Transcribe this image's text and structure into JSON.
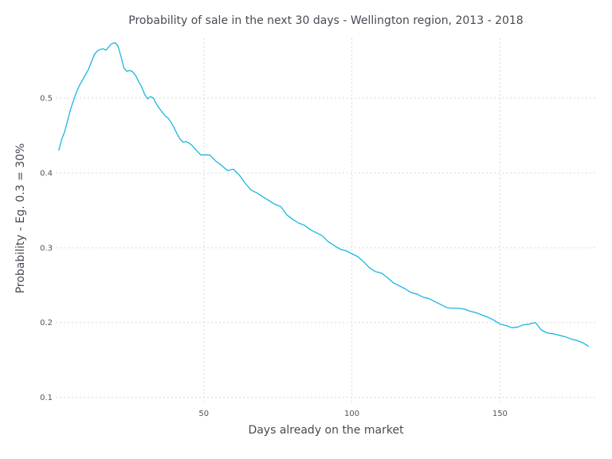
{
  "chart_data": {
    "type": "line",
    "title": "Probability of sale in the next 30 days - Wellington region, 2013 - 2018",
    "xlabel": "Days already on the market",
    "ylabel": "Probability - Eg. 0.3 = 30%",
    "xlim": [
      0,
      183
    ],
    "ylim": [
      0.09,
      0.58
    ],
    "xticks": [
      50,
      100,
      150
    ],
    "xtick_labels": [
      "50",
      "100",
      "150"
    ],
    "yticks": [
      0.1,
      0.2,
      0.3,
      0.4,
      0.5
    ],
    "ytick_labels": [
      "0.1",
      "0.2",
      "0.3",
      "0.4",
      "0.5"
    ],
    "grid": true,
    "legend": "none",
    "series": [
      {
        "color": "#1ab6e0",
        "x": [
          1,
          2,
          3,
          4,
          5,
          6,
          7,
          8,
          9,
          10,
          11,
          12,
          13,
          14,
          15,
          16,
          17,
          18,
          19,
          20,
          21,
          22,
          23,
          24,
          25,
          26,
          27,
          28,
          29,
          30,
          31,
          32,
          33,
          34,
          35,
          36,
          37,
          38,
          39,
          40,
          41,
          42,
          43,
          44,
          45,
          46,
          47,
          48,
          49,
          50,
          52,
          54,
          56,
          58,
          60,
          62,
          64,
          66,
          68,
          70,
          72,
          74,
          76,
          78,
          80,
          82,
          84,
          86,
          88,
          90,
          92,
          94,
          96,
          98,
          100,
          102,
          104,
          106,
          108,
          110,
          112,
          114,
          116,
          118,
          120,
          122,
          124,
          126,
          128,
          130,
          132,
          134,
          136,
          138,
          140,
          142,
          144,
          146,
          148,
          150,
          152,
          154,
          156,
          158,
          160,
          162,
          164,
          166,
          168,
          170,
          172,
          174,
          176,
          178,
          180
        ],
        "y": [
          0.43,
          0.445,
          0.455,
          0.47,
          0.485,
          0.497,
          0.508,
          0.517,
          0.524,
          0.531,
          0.538,
          0.548,
          0.558,
          0.563,
          0.565,
          0.566,
          0.564,
          0.569,
          0.573,
          0.574,
          0.57,
          0.556,
          0.54,
          0.536,
          0.537,
          0.535,
          0.53,
          0.522,
          0.515,
          0.505,
          0.499,
          0.502,
          0.5,
          0.492,
          0.486,
          0.481,
          0.476,
          0.473,
          0.467,
          0.46,
          0.452,
          0.445,
          0.441,
          0.442,
          0.44,
          0.437,
          0.432,
          0.428,
          0.424,
          0.424,
          0.424,
          0.416,
          0.41,
          0.403,
          0.405,
          0.397,
          0.386,
          0.377,
          0.373,
          0.368,
          0.363,
          0.358,
          0.355,
          0.344,
          0.338,
          0.333,
          0.33,
          0.324,
          0.32,
          0.316,
          0.308,
          0.303,
          0.298,
          0.296,
          0.292,
          0.288,
          0.281,
          0.273,
          0.268,
          0.266,
          0.26,
          0.253,
          0.249,
          0.245,
          0.24,
          0.238,
          0.234,
          0.232,
          0.228,
          0.224,
          0.22,
          0.219,
          0.219,
          0.218,
          0.215,
          0.213,
          0.21,
          0.207,
          0.203,
          0.198,
          0.196,
          0.193,
          0.194,
          0.197,
          0.198,
          0.2,
          0.19,
          0.186,
          0.185,
          0.183,
          0.181,
          0.178,
          0.176,
          0.173,
          0.168
        ]
      }
    ]
  }
}
